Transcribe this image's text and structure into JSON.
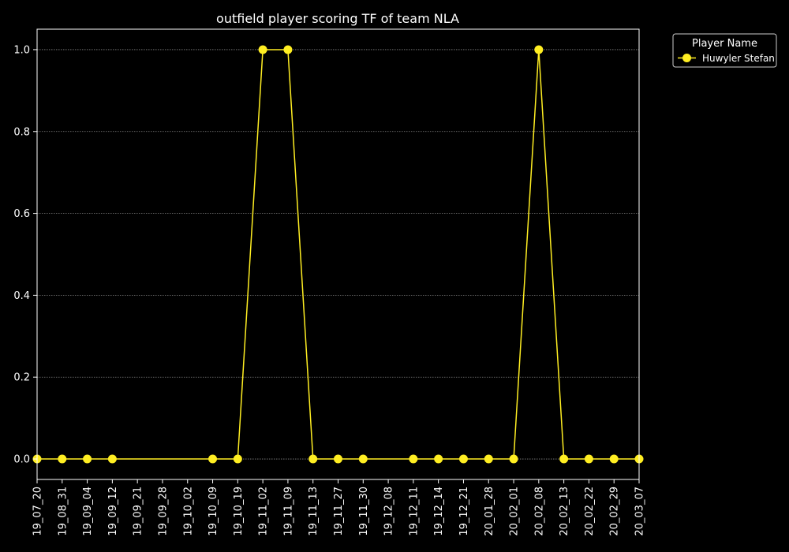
{
  "chart_data": {
    "type": "line",
    "title": "outfield player scoring TF of team NLA",
    "xlabel": "",
    "ylabel": "",
    "categories": [
      "19_07_20",
      "19_08_31",
      "19_09_04",
      "19_09_12",
      "19_09_21",
      "19_09_28",
      "19_10_02",
      "19_10_09",
      "19_10_19",
      "19_11_02",
      "19_11_09",
      "19_11_13",
      "19_11_27",
      "19_11_30",
      "19_12_08",
      "19_12_11",
      "19_12_14",
      "19_12_21",
      "20_01_28",
      "20_02_01",
      "20_02_08",
      "20_02_13",
      "20_02_22",
      "20_02_29",
      "20_03_07"
    ],
    "ylim": [
      -0.05,
      1.05
    ],
    "yticks": [
      0.0,
      0.2,
      0.4,
      0.6,
      0.8,
      1.0
    ],
    "ytick_labels": [
      "0.0",
      "0.2",
      "0.4",
      "0.6",
      "0.8",
      "1.0"
    ],
    "grid": "y-dotted",
    "legend": {
      "title": "Player Name",
      "placement": "outside-top-right"
    },
    "series": [
      {
        "name": "Huwyler Stefan",
        "color": "#ffee22",
        "marker": "circle",
        "values": [
          0,
          0,
          0,
          0,
          null,
          null,
          null,
          0,
          0,
          1,
          1,
          0,
          0,
          0,
          null,
          0,
          0,
          0,
          0,
          0,
          1,
          0,
          0,
          0,
          0
        ]
      }
    ]
  }
}
